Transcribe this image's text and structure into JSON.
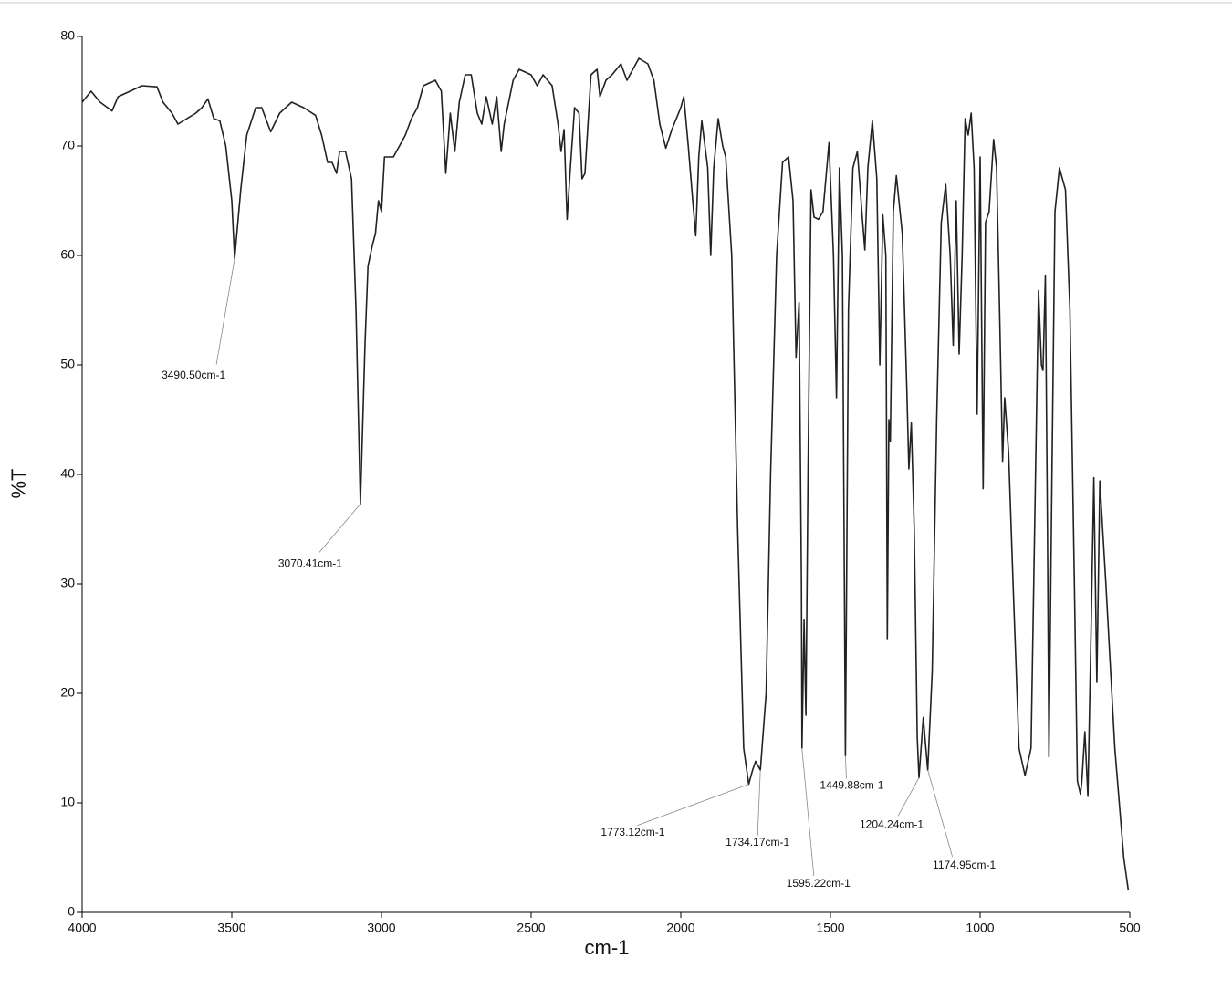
{
  "chart_data": {
    "type": "line",
    "xlabel": "cm-1",
    "ylabel": "%T",
    "xlim": [
      4000,
      500
    ],
    "xticks": [
      4000,
      3500,
      3000,
      2500,
      2000,
      1500,
      1000,
      500
    ],
    "ylim": [
      0,
      80
    ],
    "yticks": [
      0,
      10,
      20,
      30,
      40,
      50,
      60,
      70,
      80
    ],
    "x": [
      4000,
      3970,
      3940,
      3900,
      3880,
      3800,
      3750,
      3730,
      3700,
      3680,
      3650,
      3620,
      3600,
      3580,
      3560,
      3540,
      3520,
      3500,
      3490.5,
      3470,
      3450,
      3420,
      3400,
      3370,
      3340,
      3300,
      3260,
      3220,
      3200,
      3180,
      3165,
      3150,
      3140,
      3120,
      3100,
      3085,
      3070.41,
      3055,
      3045,
      3030,
      3020,
      3010,
      3000,
      2990,
      2960,
      2940,
      2920,
      2900,
      2880,
      2860,
      2820,
      2800,
      2785,
      2770,
      2755,
      2740,
      2720,
      2700,
      2680,
      2665,
      2650,
      2630,
      2615,
      2600,
      2590,
      2560,
      2540,
      2500,
      2480,
      2460,
      2430,
      2410,
      2400,
      2390,
      2380,
      2370,
      2355,
      2340,
      2330,
      2320,
      2300,
      2280,
      2270,
      2250,
      2230,
      2200,
      2180,
      2160,
      2140,
      2110,
      2090,
      2070,
      2050,
      2030,
      2000,
      1990,
      1975,
      1960,
      1950,
      1940,
      1930,
      1910,
      1900,
      1890,
      1875,
      1860,
      1850,
      1830,
      1810,
      1790,
      1773.12,
      1760,
      1750,
      1734.17,
      1715,
      1700,
      1680,
      1660,
      1640,
      1625,
      1615,
      1605,
      1597,
      1595.22,
      1588,
      1582,
      1575,
      1565,
      1555,
      1540,
      1525,
      1505,
      1490,
      1480,
      1470,
      1460,
      1449.88,
      1440,
      1425,
      1410,
      1395,
      1385,
      1375,
      1360,
      1345,
      1335,
      1325,
      1315,
      1310,
      1305,
      1300,
      1290,
      1280,
      1260,
      1245,
      1238,
      1230,
      1220,
      1210,
      1204.24,
      1190,
      1174.95,
      1160,
      1145,
      1130,
      1115,
      1100,
      1090,
      1080,
      1070,
      1060,
      1050,
      1040,
      1030,
      1020,
      1010,
      1000,
      990,
      982,
      970,
      955,
      945,
      935,
      925,
      918,
      905,
      890,
      870,
      850,
      830,
      815,
      805,
      795,
      790,
      782,
      775,
      770,
      760,
      750,
      735,
      715,
      700,
      685,
      675,
      665,
      660,
      650,
      640,
      630,
      620,
      610,
      600,
      580,
      550,
      520,
      505
    ],
    "series": [
      {
        "color": "#222222",
        "values": [
          74,
          75,
          74,
          73.2,
          74.5,
          75.5,
          75.4,
          74,
          73,
          72,
          72.5,
          73,
          73.5,
          74.3,
          72.5,
          72.3,
          70,
          65,
          59.7,
          66,
          71,
          73.5,
          73.5,
          71.3,
          73,
          74,
          73.5,
          72.8,
          71,
          68.5,
          68.5,
          67.5,
          69.5,
          69.5,
          67,
          55,
          37.3,
          52,
          59,
          61,
          62,
          65,
          64,
          69,
          69,
          70,
          71,
          72.5,
          73.5,
          75.5,
          76,
          75,
          67.5,
          73,
          69.5,
          74,
          76.5,
          76.5,
          73,
          72,
          74.5,
          72,
          74.5,
          69.5,
          72,
          76,
          77,
          76.5,
          75.5,
          76.5,
          75.5,
          72,
          69.5,
          71.5,
          63.3,
          67.5,
          73.5,
          73,
          67,
          67.5,
          76.5,
          77,
          74.5,
          76,
          76.5,
          77.5,
          76,
          77,
          78,
          77.5,
          76,
          72,
          69.8,
          71.5,
          73.5,
          74.5,
          70,
          65,
          61.8,
          69,
          72.3,
          68,
          60,
          68,
          72.5,
          70,
          69,
          60,
          35,
          15,
          11.7,
          13,
          13.8,
          13,
          20,
          40,
          60,
          68.5,
          69,
          65,
          50.7,
          55.7,
          30,
          15,
          26.7,
          18,
          40,
          66,
          63.5,
          63.3,
          64,
          70.3,
          60,
          47,
          68,
          60,
          14.3,
          55,
          68,
          69.5,
          64,
          60.5,
          68,
          72.3,
          67,
          50,
          63.7,
          60,
          25,
          45,
          43,
          64,
          67.3,
          62,
          48,
          40.5,
          44.7,
          35,
          16,
          12.3,
          17.8,
          13,
          22,
          45,
          63,
          66.5,
          60,
          51.8,
          65,
          51,
          60,
          72.5,
          71,
          73,
          68,
          45.5,
          69,
          38.7,
          63,
          64,
          70.6,
          68,
          55,
          41.2,
          47,
          42,
          30,
          15,
          12.5,
          15,
          40,
          56.8,
          50,
          49.5,
          58.2,
          35,
          14.2,
          40,
          64,
          68,
          66,
          55,
          30,
          12,
          10.8,
          12,
          16.5,
          10.6,
          25,
          39.7,
          21,
          39.4,
          30,
          15,
          5,
          2
        ]
      }
    ],
    "annotations": [
      {
        "text": "3490.50cm-1",
        "x": 3490.5,
        "y": 59.7
      },
      {
        "text": "3070.41cm-1",
        "x": 3070.41,
        "y": 37.3
      },
      {
        "text": "1773.12cm-1",
        "x": 1773.12,
        "y": 11.7
      },
      {
        "text": "1734.17cm-1",
        "x": 1734.17,
        "y": 13
      },
      {
        "text": "1595.22cm-1",
        "x": 1595.22,
        "y": 15
      },
      {
        "text": "1449.88cm-1",
        "x": 1449.88,
        "y": 14.3
      },
      {
        "text": "1204.24cm-1",
        "x": 1204.24,
        "y": 12.3
      },
      {
        "text": "1174.95cm-1",
        "x": 1174.95,
        "y": 13
      }
    ]
  }
}
